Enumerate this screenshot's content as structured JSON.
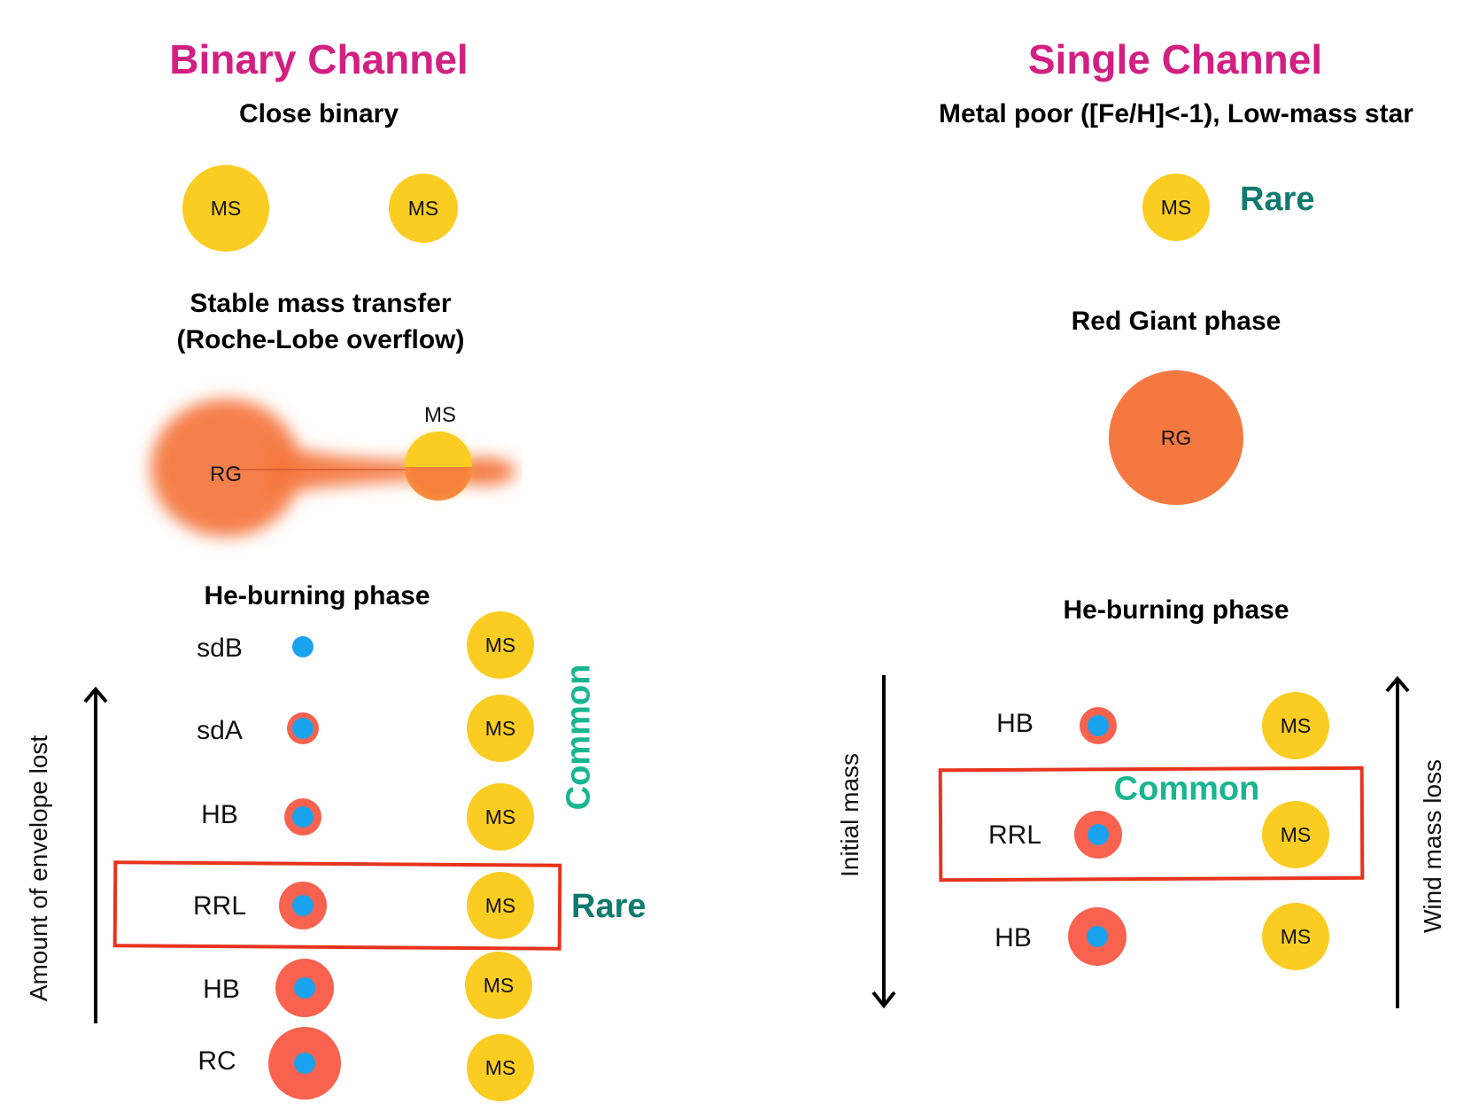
{
  "binary_channel": {
    "title": "Binary Channel",
    "close_binary_label": "Close binary",
    "star_ms_label": "MS",
    "transfer_line1": "Stable mass transfer",
    "transfer_line2": "(Roche-Lobe overflow)",
    "transfer_ms_label": "MS",
    "transfer_rg_label": "RG",
    "he_burning_label": "He-burning phase",
    "rows": [
      {
        "label": "sdB"
      },
      {
        "label": "sdA"
      },
      {
        "label": "HB"
      },
      {
        "label": "RRL"
      },
      {
        "label": "HB"
      },
      {
        "label": "RC"
      }
    ],
    "common_label": "Common",
    "rare_label": "Rare",
    "axis_label": "Amount of envelope  lost"
  },
  "single_channel": {
    "title": "Single Channel",
    "subtitle": "Metal poor ([Fe/H]<-1), Low-mass star",
    "ms_label": "MS",
    "rare_label": "Rare",
    "red_giant_label": "Red Giant phase",
    "rg_label": "RG",
    "he_burning_label": "He-burning phase",
    "rows": [
      {
        "label": "HB"
      },
      {
        "label": "RRL"
      },
      {
        "label": "HB"
      }
    ],
    "common_label": "Common",
    "left_axis_label": "Initial mass",
    "right_axis_label": "Wind mass loss"
  },
  "colors": {
    "title": "#d21f82",
    "main_sequence": "#fbcd23",
    "red_giant": "#f67841",
    "envelope": "#f8624e",
    "core": "#1aa3ee",
    "rare": "#0f7a6f",
    "common": "#18b590",
    "highlight_box": "#e8331f"
  }
}
